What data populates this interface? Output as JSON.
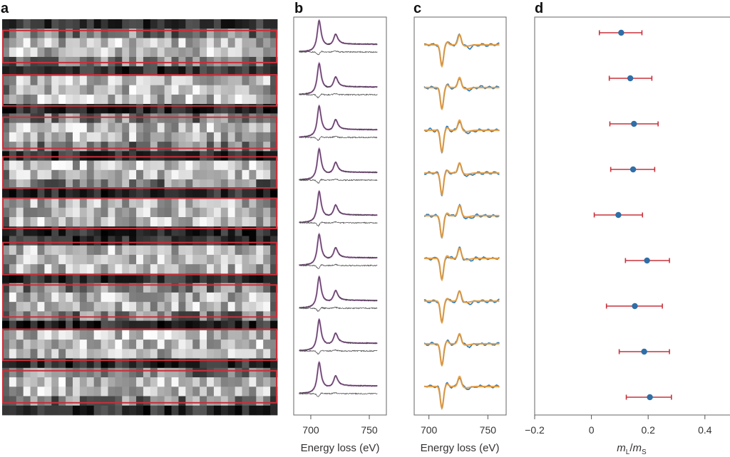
{
  "figure": {
    "panels": [
      {
        "id": "a",
        "label": "a"
      },
      {
        "id": "b",
        "label": "b"
      },
      {
        "id": "c",
        "label": "c"
      },
      {
        "id": "d",
        "label": "d"
      }
    ]
  },
  "colors": {
    "rect": "#c8303a",
    "fit_b": "#a45aae",
    "data_b": "#3a3a3a",
    "diff_b": "#555555",
    "fit_c": "#e69a3c",
    "data_c": "#2f7ab8",
    "errorbar": "#c8323c",
    "point": "#2f6ea6",
    "axis": "#555555"
  },
  "chart_data": [
    {
      "panel": "a",
      "type": "heatmap",
      "title": "",
      "grid": {
        "columns": 39,
        "rows": 42
      },
      "colormap": "grayscale",
      "highlighted_row_bands": [
        {
          "start_row": 1.2,
          "end_row": 4.6
        },
        {
          "start_row": 5.9,
          "end_row": 9.2
        },
        {
          "start_row": 10.4,
          "end_row": 13.7
        },
        {
          "start_row": 14.6,
          "end_row": 17.9
        },
        {
          "start_row": 19.0,
          "end_row": 22.2
        },
        {
          "start_row": 23.7,
          "end_row": 27.1
        },
        {
          "start_row": 28.2,
          "end_row": 31.6
        },
        {
          "start_row": 32.9,
          "end_row": 36.2
        },
        {
          "start_row": 37.3,
          "end_row": 40.7
        }
      ]
    },
    {
      "panel": "b",
      "type": "line",
      "xlabel": "Energy loss (eV)",
      "ylabel": "",
      "xlim": [
        685.4,
        764.6
      ],
      "xticks": [
        700,
        750
      ],
      "xtick_labels": [
        "700",
        "750"
      ],
      "n_spectra": 9,
      "series": [
        {
          "name": "spectrum (data)",
          "role": "data"
        },
        {
          "name": "fit",
          "role": "fit"
        },
        {
          "name": "difference",
          "role": "difference"
        }
      ],
      "features": {
        "L3_edge_eV": 707,
        "L2_edge_eV": 721,
        "pre_edge_start_eV": 690,
        "end_eV": 757
      }
    },
    {
      "panel": "c",
      "type": "line",
      "xlabel": "Energy loss (eV)",
      "ylabel": "",
      "xlim": [
        687.5,
        765.5
      ],
      "xticks": [
        700,
        750
      ],
      "xtick_labels": [
        "700",
        "750"
      ],
      "n_spectra": 9,
      "series": [
        {
          "name": "dichroic signal (data)",
          "role": "data"
        },
        {
          "name": "fit",
          "role": "fit"
        }
      ],
      "features": {
        "L3_dip_eV": 711,
        "L2_peak_eV": 726,
        "start_eV": 696,
        "end_eV": 760
      }
    },
    {
      "panel": "d",
      "type": "scatter",
      "xlabel": "mL/mS",
      "xlabel_main": "m",
      "xlabel_sub1": "L",
      "xlabel_slash": "/",
      "xlabel_sub2": "S",
      "ylabel": "",
      "xlim": [
        -0.2,
        0.49
      ],
      "xticks": [
        -0.2,
        0,
        0.2,
        0.4
      ],
      "xtick_labels": [
        "−0.2",
        "0",
        "0.2",
        "0.4"
      ],
      "grid": false,
      "points": [
        {
          "row": 1,
          "value": 0.105,
          "err_low": 0.028,
          "err_high": 0.178
        },
        {
          "row": 2,
          "value": 0.137,
          "err_low": 0.063,
          "err_high": 0.213
        },
        {
          "row": 3,
          "value": 0.15,
          "err_low": 0.065,
          "err_high": 0.235
        },
        {
          "row": 4,
          "value": 0.147,
          "err_low": 0.068,
          "err_high": 0.223
        },
        {
          "row": 5,
          "value": 0.095,
          "err_low": 0.01,
          "err_high": 0.18
        },
        {
          "row": 6,
          "value": 0.196,
          "err_low": 0.12,
          "err_high": 0.275
        },
        {
          "row": 7,
          "value": 0.153,
          "err_low": 0.053,
          "err_high": 0.25
        },
        {
          "row": 8,
          "value": 0.186,
          "err_low": 0.098,
          "err_high": 0.275
        },
        {
          "row": 9,
          "value": 0.206,
          "err_low": 0.123,
          "err_high": 0.282
        }
      ]
    }
  ]
}
